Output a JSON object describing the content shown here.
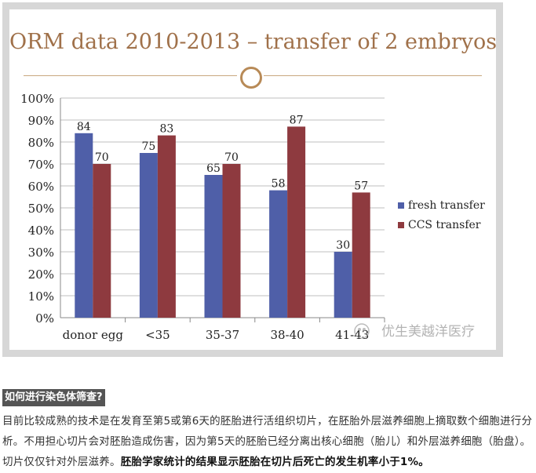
{
  "chart_data": {
    "type": "bar",
    "title": "ORM data 2010-2013 – transfer of 2 embryos",
    "categories": [
      "donor egg",
      "<35",
      "35-37",
      "38-40",
      "41-43"
    ],
    "series": [
      {
        "name": "fresh transfer",
        "values": [
          84,
          75,
          65,
          58,
          30
        ],
        "color": "#4f5fa8"
      },
      {
        "name": "CCS transfer",
        "values": [
          70,
          83,
          70,
          87,
          57
        ],
        "color": "#8e3a3f"
      }
    ],
    "ylim": [
      0,
      100
    ],
    "yticks": [
      "0%",
      "10%",
      "20%",
      "30%",
      "40%",
      "50%",
      "60%",
      "70%",
      "80%",
      "90%",
      "100%"
    ],
    "grid": true,
    "legend": "right"
  },
  "watermark": "优生美越洋医疗",
  "article": {
    "heading": "如何进行染色体筛查?",
    "paragraph_plain": "目前比较成熟的技术是在发育至第5或第6天的胚胎进行活组织切片，在胚胎外层滋养细胞上摘取数个细胞进行分析。不用担心切片会对胚胎造成伤害，因为第5天的胚胎已经分离出核心细胞（胎儿）和外层滋养细胞（胎盘）。切片仅仅针对外层滋养。",
    "paragraph_bold": "胚胎学家统计的结果显示胚胎在切片后死亡的发生机率小于1%。"
  }
}
